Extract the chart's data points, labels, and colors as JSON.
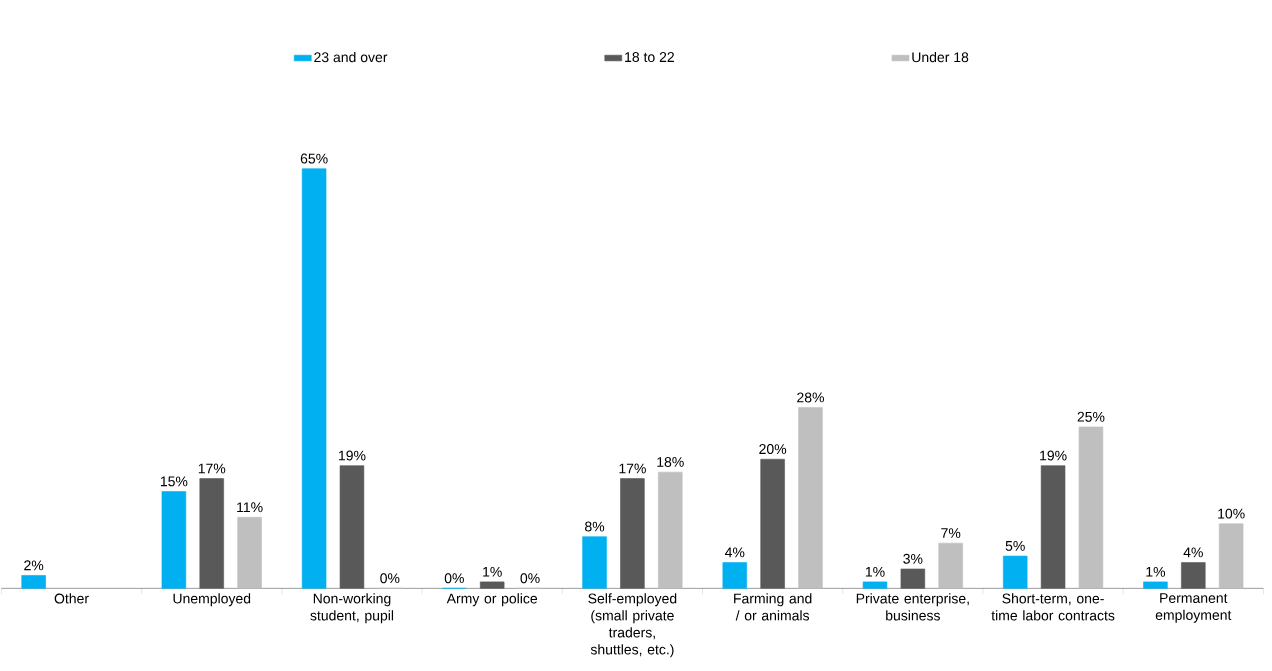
{
  "chart_data": {
    "type": "bar",
    "categories": [
      "Other",
      "Unemployed",
      "Non-working student, pupil",
      "Army or police",
      "Self-employed (small private traders, shuttles, etc.)",
      "Farming and / or animals",
      "Private enterprise, business",
      "Short-term, one-time labor contracts",
      "Permanent employment"
    ],
    "series": [
      {
        "name": "23 and over",
        "color": "#00b0f0",
        "values": [
          2,
          15,
          65,
          0,
          8,
          4,
          1,
          5,
          1
        ],
        "value_labels": [
          "2%",
          "15%",
          "65%",
          "0%",
          "8%",
          "4%",
          "1%",
          "5%",
          "1%"
        ]
      },
      {
        "name": "18 to 22",
        "color": "#595959",
        "values": [
          null,
          17,
          19,
          1,
          17,
          20,
          3,
          19,
          4
        ],
        "value_labels": [
          null,
          "17%",
          "19%",
          "1%",
          "17%",
          "20%",
          "3%",
          "19%",
          "4%"
        ]
      },
      {
        "name": "Under 18",
        "color": "#bfbfbf",
        "values": [
          null,
          11,
          0,
          0,
          18,
          28,
          7,
          25,
          10
        ],
        "value_labels": [
          null,
          "11%",
          "0%",
          "0%",
          "18%",
          "28%",
          "7%",
          "25%",
          "10%"
        ]
      }
    ],
    "legend": "top"
  }
}
